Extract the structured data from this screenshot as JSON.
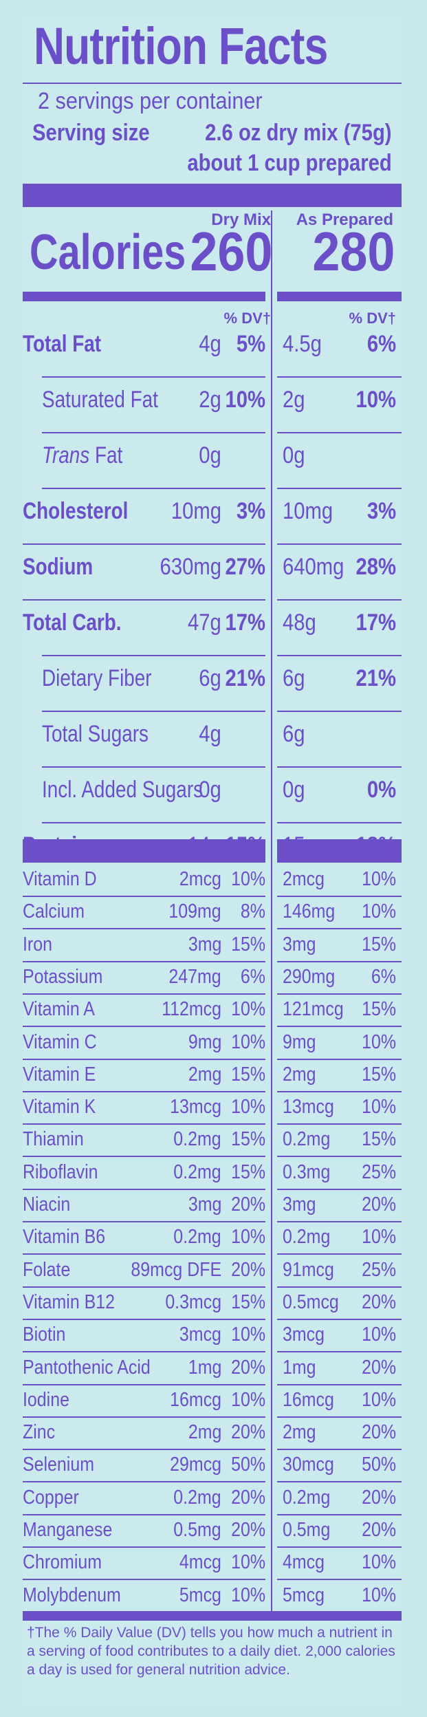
{
  "title": "Nutrition Facts",
  "servings": "2 servings per container",
  "serving_size_label": "Serving size",
  "serving_size_value": "2.6 oz dry mix (75g)",
  "serving_size_prepared": "about 1 cup prepared",
  "columns": {
    "dry": "Dry Mix",
    "prepared": "As Prepared"
  },
  "calories": {
    "label": "Calories",
    "dry": "260",
    "prepared": "280"
  },
  "dv_header": "% DV†",
  "nutrients": [
    {
      "label": "Total Fat",
      "bold": true,
      "indent": false,
      "dry_amt": "4g",
      "dry_dv": "5%",
      "prep_amt": "4.5g",
      "prep_dv": "6%"
    },
    {
      "label": "Saturated Fat",
      "bold": false,
      "indent": true,
      "dry_amt": "2g",
      "dry_dv": "10%",
      "prep_amt": "2g",
      "prep_dv": "10%"
    },
    {
      "label": "Trans",
      "label_suffix": " Fat",
      "italic": true,
      "bold": false,
      "indent": true,
      "dry_amt": "0g",
      "dry_dv": "",
      "prep_amt": "0g",
      "prep_dv": ""
    },
    {
      "label": "Cholesterol",
      "bold": true,
      "indent": false,
      "dry_amt": "10mg",
      "dry_dv": "3%",
      "prep_amt": "10mg",
      "prep_dv": "3%"
    },
    {
      "label": "Sodium",
      "bold": true,
      "indent": false,
      "dry_amt": "630mg",
      "dry_dv": "27%",
      "prep_amt": "640mg",
      "prep_dv": "28%"
    },
    {
      "label": "Total Carb.",
      "bold": true,
      "indent": false,
      "dry_amt": "47g",
      "dry_dv": "17%",
      "prep_amt": "48g",
      "prep_dv": "17%"
    },
    {
      "label": "Dietary Fiber",
      "bold": false,
      "indent": true,
      "dry_amt": "6g",
      "dry_dv": "21%",
      "prep_amt": "6g",
      "prep_dv": "21%"
    },
    {
      "label": "Total Sugars",
      "bold": false,
      "indent": true,
      "dry_amt": "4g",
      "dry_dv": "",
      "prep_amt": "6g",
      "prep_dv": ""
    },
    {
      "label": "Incl. Added Sugars",
      "bold": false,
      "indent": true,
      "dry_amt": "0g",
      "dry_dv": "",
      "prep_amt": "0g",
      "prep_dv": "0%"
    },
    {
      "label": "Protein",
      "bold": true,
      "indent": false,
      "dry_amt": "14g",
      "dry_dv": "15%",
      "prep_amt": "15g",
      "prep_dv": "18%"
    }
  ],
  "micros": [
    {
      "label": "Vitamin D",
      "dry_amt": "2mcg",
      "dry_dv": "10%",
      "prep_amt": "2mcg",
      "prep_dv": "10%"
    },
    {
      "label": "Calcium",
      "dry_amt": "109mg",
      "dry_dv": "8%",
      "prep_amt": "146mg",
      "prep_dv": "10%"
    },
    {
      "label": "Iron",
      "dry_amt": "3mg",
      "dry_dv": "15%",
      "prep_amt": "3mg",
      "prep_dv": "15%"
    },
    {
      "label": "Potassium",
      "dry_amt": "247mg",
      "dry_dv": "6%",
      "prep_amt": "290mg",
      "prep_dv": "6%"
    },
    {
      "label": "Vitamin A",
      "dry_amt": "112mcg",
      "dry_dv": "10%",
      "prep_amt": "121mcg",
      "prep_dv": "15%"
    },
    {
      "label": "Vitamin C",
      "dry_amt": "9mg",
      "dry_dv": "10%",
      "prep_amt": "9mg",
      "prep_dv": "10%"
    },
    {
      "label": "Vitamin E",
      "dry_amt": "2mg",
      "dry_dv": "15%",
      "prep_amt": "2mg",
      "prep_dv": "15%"
    },
    {
      "label": "Vitamin K",
      "dry_amt": "13mcg",
      "dry_dv": "10%",
      "prep_amt": "13mcg",
      "prep_dv": "10%"
    },
    {
      "label": "Thiamin",
      "dry_amt": "0.2mg",
      "dry_dv": "15%",
      "prep_amt": "0.2mg",
      "prep_dv": "15%"
    },
    {
      "label": "Riboflavin",
      "dry_amt": "0.2mg",
      "dry_dv": "15%",
      "prep_amt": "0.3mg",
      "prep_dv": "25%"
    },
    {
      "label": "Niacin",
      "dry_amt": "3mg",
      "dry_dv": "20%",
      "prep_amt": "3mg",
      "prep_dv": "20%"
    },
    {
      "label": "Vitamin B6",
      "dry_amt": "0.2mg",
      "dry_dv": "10%",
      "prep_amt": "0.2mg",
      "prep_dv": "10%"
    },
    {
      "label": "Folate",
      "dry_amt": "89mcg DFE",
      "dry_dv": "20%",
      "prep_amt": "91mcg",
      "prep_dv": "25%"
    },
    {
      "label": "Vitamin B12",
      "dry_amt": "0.3mcg",
      "dry_dv": "15%",
      "prep_amt": "0.5mcg",
      "prep_dv": "20%"
    },
    {
      "label": "Biotin",
      "dry_amt": "3mcg",
      "dry_dv": "10%",
      "prep_amt": "3mcg",
      "prep_dv": "10%"
    },
    {
      "label": "Pantothenic Acid",
      "dry_amt": "1mg",
      "dry_dv": "20%",
      "prep_amt": "1mg",
      "prep_dv": "20%"
    },
    {
      "label": "Iodine",
      "dry_amt": "16mcg",
      "dry_dv": "10%",
      "prep_amt": "16mcg",
      "prep_dv": "10%"
    },
    {
      "label": "Zinc",
      "dry_amt": "2mg",
      "dry_dv": "20%",
      "prep_amt": "2mg",
      "prep_dv": "20%"
    },
    {
      "label": "Selenium",
      "dry_amt": "29mcg",
      "dry_dv": "50%",
      "prep_amt": "30mcg",
      "prep_dv": "50%"
    },
    {
      "label": "Copper",
      "dry_amt": "0.2mg",
      "dry_dv": "20%",
      "prep_amt": "0.2mg",
      "prep_dv": "20%"
    },
    {
      "label": "Manganese",
      "dry_amt": "0.5mg",
      "dry_dv": "20%",
      "prep_amt": "0.5mg",
      "prep_dv": "20%"
    },
    {
      "label": "Chromium",
      "dry_amt": "4mcg",
      "dry_dv": "10%",
      "prep_amt": "4mcg",
      "prep_dv": "10%"
    },
    {
      "label": "Molybdenum",
      "dry_amt": "5mcg",
      "dry_dv": "10%",
      "prep_amt": "5mcg",
      "prep_dv": "10%"
    }
  ],
  "footnote": "†The % Daily Value (DV) tells you how much a nutrient in a serving of  food contributes to a daily diet. 2,000 calories a day is used for general nutrition advice.",
  "colors": {
    "ink": "#6a4fc9",
    "background": "#cbeaee"
  }
}
